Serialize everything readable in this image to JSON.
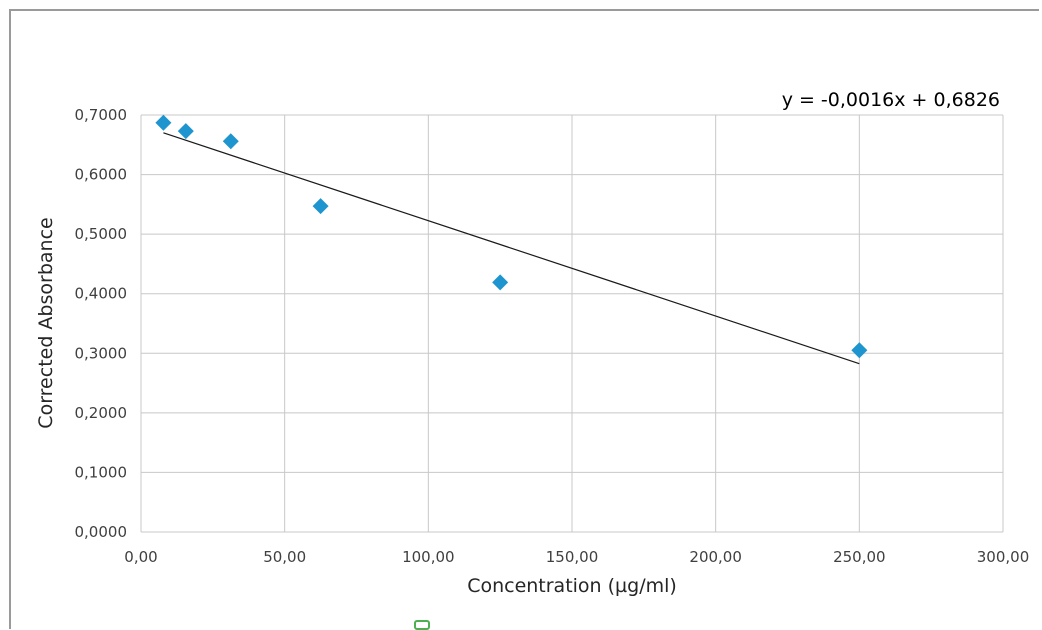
{
  "chart_data": {
    "type": "scatter",
    "title": "",
    "xlabel": "Concentration (µg/ml)",
    "ylabel": "Corrected Absorbance",
    "xlim": [
      0,
      300
    ],
    "ylim": [
      0,
      0.7
    ],
    "xticks": [
      "0,00",
      "50,00",
      "100,00",
      "150,00",
      "200,00",
      "250,00",
      "300,00"
    ],
    "yticks": [
      "0,0000",
      "0,1000",
      "0,2000",
      "0,3000",
      "0,4000",
      "0,5000",
      "0,6000",
      "0,7000"
    ],
    "xtick_values": [
      0,
      50,
      100,
      150,
      200,
      250,
      300
    ],
    "ytick_values": [
      0,
      0.1,
      0.2,
      0.3,
      0.4,
      0.5,
      0.6,
      0.7
    ],
    "grid": true,
    "legend": "none",
    "series": [
      {
        "marker": "diamond",
        "color": "#1f95cf",
        "x": [
          7.8,
          15.6,
          31.25,
          62.5,
          125,
          250
        ],
        "y": [
          0.687,
          0.673,
          0.656,
          0.547,
          0.419,
          0.305
        ]
      }
    ],
    "trendline": {
      "slope": -0.0016,
      "intercept": 0.6826,
      "x_range": [
        7.8,
        250
      ],
      "label": "y = -0,0016x + 0,6826"
    }
  }
}
